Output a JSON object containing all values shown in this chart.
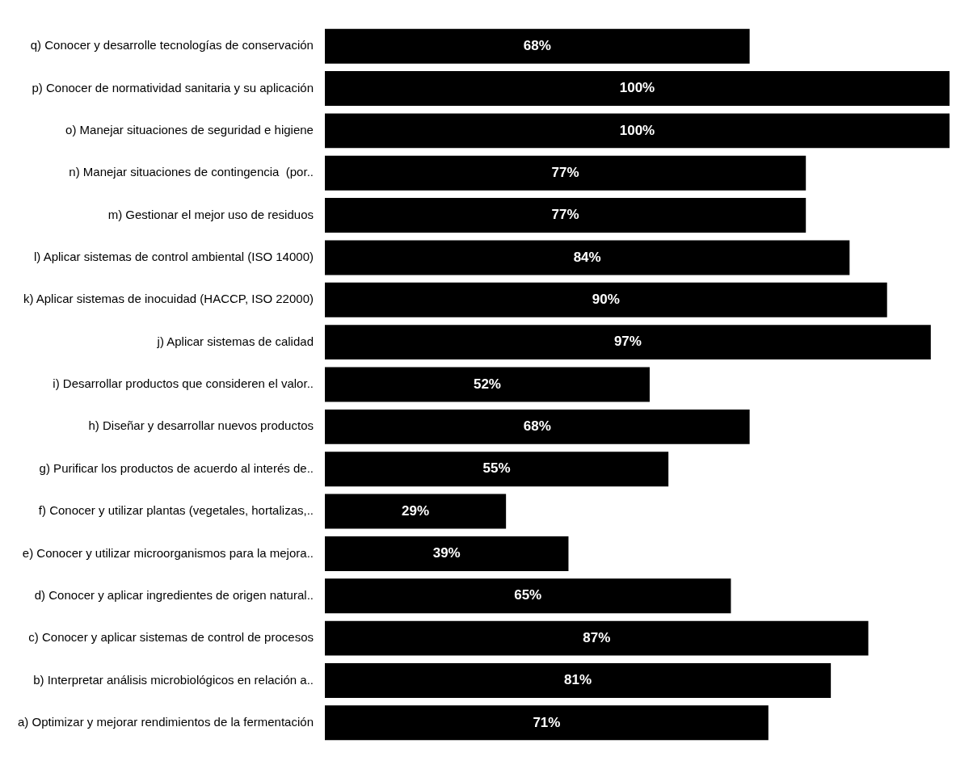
{
  "chart_data": {
    "type": "bar",
    "orientation": "horizontal",
    "categories": [
      "q) Conocer y desarrolle tecnologías de conservación",
      "p) Conocer de normatividad sanitaria y su aplicación",
      "o) Manejar situaciones de seguridad e higiene",
      "n) Manejar situaciones de contingencia  (por..",
      "m) Gestionar el mejor uso de residuos",
      "l) Aplicar sistemas de control ambiental (ISO 14000)",
      "k) Aplicar sistemas de inocuidad (HACCP, ISO 22000)",
      "j) Aplicar sistemas de calidad",
      "i) Desarrollar productos que consideren el valor..",
      "h) Diseñar y desarrollar nuevos productos",
      "g) Purificar los productos de acuerdo al interés de..",
      "f) Conocer y utilizar plantas (vegetales, hortalizas,..",
      "e) Conocer y utilizar microorganismos para la mejora..",
      "d) Conocer y aplicar ingredientes de origen natural..",
      "c) Conocer y aplicar sistemas de control de procesos",
      "b) Interpretar análisis microbiológicos en relación a..",
      "a) Optimizar y mejorar rendimientos de la fermentación"
    ],
    "values": [
      68,
      100,
      100,
      77,
      77,
      84,
      90,
      97,
      52,
      68,
      55,
      29,
      39,
      65,
      87,
      81,
      71
    ],
    "value_labels": [
      "68%",
      "100%",
      "100%",
      "77%",
      "77%",
      "84%",
      "90%",
      "97%",
      "52%",
      "68%",
      "55%",
      "29%",
      "39%",
      "65%",
      "87%",
      "81%",
      "71%"
    ],
    "color": "#000000",
    "grid": false,
    "legend": false,
    "tick_labels": "y"
  }
}
